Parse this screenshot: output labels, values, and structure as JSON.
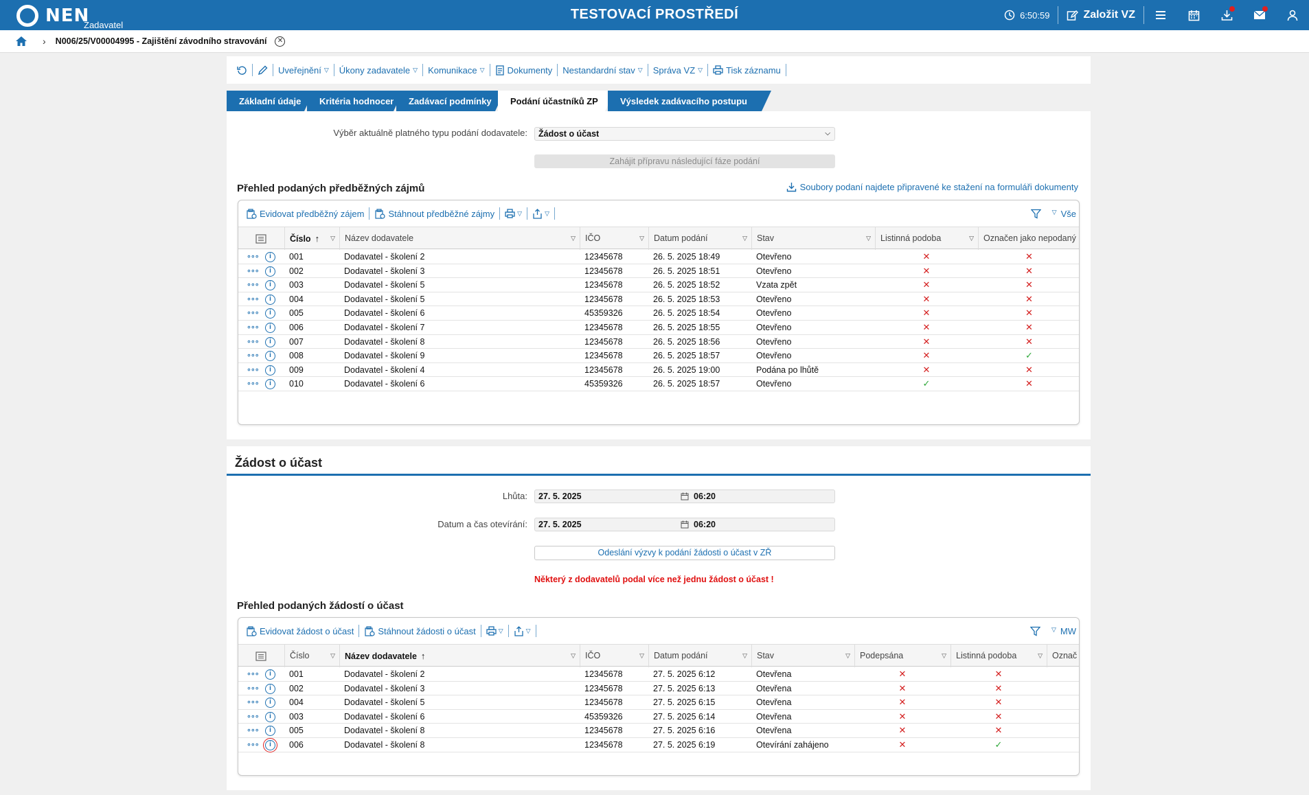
{
  "topbar": {
    "logo_text": "NEN",
    "logo_sub": "Zadavatel",
    "env_title": "TESTOVACÍ PROSTŘEDÍ",
    "clock": "6:50:59",
    "new_vz_label": "Založit VZ",
    "icons": [
      "clock-icon",
      "edit-icon",
      "menu-icon",
      "calendar-icon",
      "download-icon",
      "mail-icon",
      "user-icon"
    ],
    "colors": {
      "bar": "#1c6fb0",
      "badge": "#e02020"
    }
  },
  "breadcrumb": {
    "text": "N006/25/V00004995 - Zajištění závodního stravování"
  },
  "menu": {
    "items": [
      {
        "label": "Uveřejnění",
        "dropdown": true
      },
      {
        "label": "Úkony zadavatele",
        "dropdown": true
      },
      {
        "label": "Komunikace",
        "dropdown": true
      },
      {
        "label": "Dokumenty",
        "dropdown": false
      },
      {
        "label": "Nestandardní stav",
        "dropdown": true
      },
      {
        "label": "Správa VZ",
        "dropdown": true
      },
      {
        "label": "Tisk záznamu",
        "dropdown": false
      }
    ]
  },
  "tabs": [
    "Základní údaje",
    "Kritéria hodnocení",
    "Zadávací podmínky",
    "Podání účastníků ZP",
    "Výsledek zadávacího postupu"
  ],
  "active_tab": "Podání účastníků ZP",
  "submission_type": {
    "label": "Výběr aktuálně platného typu podání dodavatele:",
    "value": "Žádost o účast",
    "next_phase_button": "Zahájit přípravu následující fáze podání"
  },
  "interests": {
    "title": "Přehled podaných předběžných zájmů",
    "files_link": "Soubory podaní najdete připravené ke stažení na formuláři dokumenty",
    "toolbar": {
      "register": "Evidovat předběžný zájem",
      "download": "Stáhnout předběžné zájmy",
      "filter_label": "Vše"
    },
    "columns": [
      "Číslo",
      "Název dodavatele",
      "IČO",
      "Datum podání",
      "Stav",
      "Listinná podoba",
      "Označen jako nepodaný"
    ],
    "rows": [
      {
        "cislo": "001",
        "nazev": "Dodavatel - školení 2",
        "ico": "12345678",
        "datum": "26. 5. 2025 18:49",
        "stav": "Otevřeno",
        "listinna": false,
        "nepodany": false
      },
      {
        "cislo": "002",
        "nazev": "Dodavatel - školení 3",
        "ico": "12345678",
        "datum": "26. 5. 2025 18:51",
        "stav": "Otevřeno",
        "listinna": false,
        "nepodany": false
      },
      {
        "cislo": "003",
        "nazev": "Dodavatel - školení 5",
        "ico": "12345678",
        "datum": "26. 5. 2025 18:52",
        "stav": "Vzata zpět",
        "listinna": false,
        "nepodany": false
      },
      {
        "cislo": "004",
        "nazev": "Dodavatel - školení 5",
        "ico": "12345678",
        "datum": "26. 5. 2025 18:53",
        "stav": "Otevřeno",
        "listinna": false,
        "nepodany": false
      },
      {
        "cislo": "005",
        "nazev": "Dodavatel - školení 6",
        "ico": "45359326",
        "datum": "26. 5. 2025 18:54",
        "stav": "Otevřeno",
        "listinna": false,
        "nepodany": false
      },
      {
        "cislo": "006",
        "nazev": "Dodavatel - školení 7",
        "ico": "12345678",
        "datum": "26. 5. 2025 18:55",
        "stav": "Otevřeno",
        "listinna": false,
        "nepodany": false
      },
      {
        "cislo": "007",
        "nazev": "Dodavatel - školení 8",
        "ico": "12345678",
        "datum": "26. 5. 2025 18:56",
        "stav": "Otevřeno",
        "listinna": false,
        "nepodany": false
      },
      {
        "cislo": "008",
        "nazev": "Dodavatel - školení 9",
        "ico": "12345678",
        "datum": "26. 5. 2025 18:57",
        "stav": "Otevřeno",
        "listinna": false,
        "nepodany": true
      },
      {
        "cislo": "009",
        "nazev": "Dodavatel - školení 4",
        "ico": "12345678",
        "datum": "26. 5. 2025 19:00",
        "stav": "Podána po lhůtě",
        "listinna": false,
        "nepodany": false
      },
      {
        "cislo": "010",
        "nazev": "Dodavatel - školení 6",
        "ico": "45359326",
        "datum": "26. 5. 2025 18:57",
        "stav": "Otevřeno",
        "listinna": true,
        "nepodany": false
      }
    ]
  },
  "request": {
    "section_title": "Žádost o účast",
    "deadline_label": "Lhůta:",
    "deadline_date": "27. 5. 2025",
    "deadline_time": "06:20",
    "opening_label": "Datum a čas otevírání:",
    "opening_date": "27. 5. 2025",
    "opening_time": "06:20",
    "send_button": "Odeslání výzvy k podání žádosti o účast v ZŘ",
    "warning": "Některý z dodavatelů podal více než jednu žádost o účast !"
  },
  "requests": {
    "title": "Přehled podaných žádostí o účast",
    "toolbar": {
      "register": "Evidovat žádost o účast",
      "download": "Stáhnout žádosti o účast",
      "filter_label": "MW"
    },
    "columns": [
      "Číslo",
      "Název dodavatele",
      "IČO",
      "Datum podání",
      "Stav",
      "Podepsána",
      "Listinná podoba",
      "Označ"
    ],
    "rows": [
      {
        "cislo": "001",
        "nazev": "Dodavatel - školení 2",
        "ico": "12345678",
        "datum": "27. 5. 2025 6:12",
        "stav": "Otevřena",
        "podepsana": false,
        "listinna": false
      },
      {
        "cislo": "002",
        "nazev": "Dodavatel - školení 3",
        "ico": "12345678",
        "datum": "27. 5. 2025 6:13",
        "stav": "Otevřena",
        "podepsana": false,
        "listinna": false
      },
      {
        "cislo": "004",
        "nazev": "Dodavatel - školení 5",
        "ico": "12345678",
        "datum": "27. 5. 2025 6:15",
        "stav": "Otevřena",
        "podepsana": false,
        "listinna": false
      },
      {
        "cislo": "003",
        "nazev": "Dodavatel - školení 6",
        "ico": "45359326",
        "datum": "27. 5. 2025 6:14",
        "stav": "Otevřena",
        "podepsana": false,
        "listinna": false
      },
      {
        "cislo": "005",
        "nazev": "Dodavatel - školení 8",
        "ico": "12345678",
        "datum": "27. 5. 2025 6:16",
        "stav": "Otevřena",
        "podepsana": false,
        "listinna": false
      },
      {
        "cislo": "006",
        "nazev": "Dodavatel - školení 8",
        "ico": "12345678",
        "datum": "27. 5. 2025 6:19",
        "stav": "Otevírání zahájeno",
        "podepsana": false,
        "listinna": true
      }
    ]
  },
  "symbols": {
    "cross": "✕",
    "check": "✓"
  }
}
